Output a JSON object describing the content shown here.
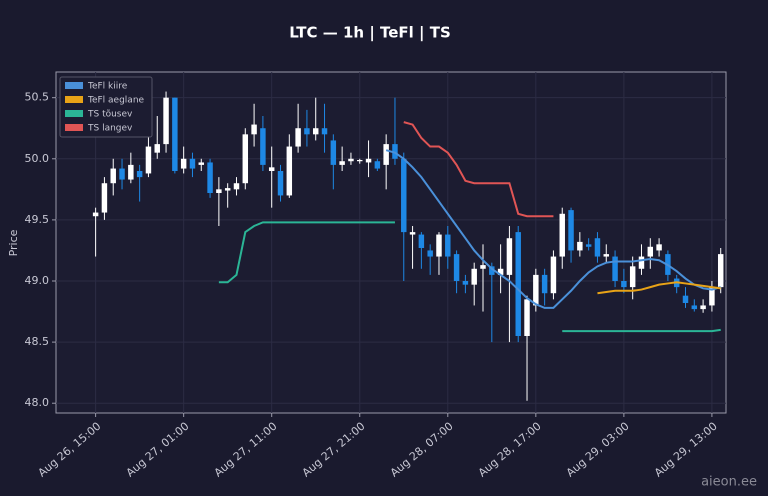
{
  "chart_data": {
    "type": "candlestick",
    "title": "LTC — 1h  |  TeFl  |  TS",
    "ylabel": "Price",
    "watermark": "aieon.ee",
    "grid": true,
    "legend": "upper left",
    "up_color": "#ffffff",
    "down_color": "#1e88e5",
    "x": [
      0,
      1,
      2,
      3,
      4,
      5,
      6,
      7,
      8,
      9,
      10,
      11,
      12,
      13,
      14,
      15,
      16,
      17,
      18,
      19,
      20,
      21,
      22,
      23,
      24,
      25,
      26,
      27,
      28,
      29,
      30,
      31,
      32,
      33,
      34,
      35,
      36,
      37,
      38,
      39,
      40,
      41,
      42,
      43,
      44,
      45,
      46,
      47,
      48,
      49,
      50,
      51,
      52,
      53,
      54,
      55,
      56,
      57,
      58,
      59,
      60,
      61,
      62,
      63,
      64,
      65,
      66,
      67,
      68,
      69,
      70,
      71
    ],
    "open": [
      49.53,
      49.56,
      49.8,
      49.92,
      49.83,
      49.9,
      49.88,
      50.05,
      50.12,
      50.5,
      49.92,
      50.0,
      49.95,
      49.97,
      49.72,
      49.74,
      49.75,
      49.8,
      50.2,
      50.25,
      49.9,
      49.9,
      49.7,
      50.1,
      50.25,
      50.2,
      50.25,
      50.15,
      49.95,
      49.98,
      49.98,
      49.97,
      49.98,
      49.95,
      50.12,
      50.0,
      49.38,
      49.38,
      49.25,
      49.2,
      49.38,
      49.22,
      49.0,
      48.97,
      49.1,
      49.12,
      49.05,
      49.05,
      49.4,
      48.55,
      48.8,
      49.05,
      48.9,
      49.2,
      49.58,
      49.25,
      49.3,
      49.35,
      49.2,
      49.2,
      49.0,
      48.95,
      49.1,
      49.2,
      49.25,
      49.22,
      49.02,
      48.88,
      48.8,
      48.77,
      48.8,
      48.95
    ],
    "high": [
      49.6,
      49.85,
      50.0,
      50.0,
      50.05,
      49.95,
      50.2,
      50.35,
      50.55,
      50.5,
      50.1,
      50.05,
      50.0,
      50.0,
      49.85,
      49.8,
      49.85,
      50.25,
      50.45,
      50.35,
      50.1,
      49.95,
      50.2,
      50.45,
      50.4,
      50.5,
      50.45,
      50.2,
      50.1,
      50.05,
      50.0,
      50.15,
      50.0,
      50.2,
      50.5,
      50.05,
      49.45,
      49.4,
      49.3,
      49.4,
      49.45,
      49.25,
      49.05,
      49.15,
      49.3,
      49.15,
      49.3,
      49.45,
      49.45,
      48.88,
      49.1,
      49.1,
      49.25,
      49.6,
      49.6,
      49.4,
      49.35,
      49.4,
      49.3,
      49.25,
      49.1,
      49.2,
      49.3,
      49.35,
      49.35,
      49.25,
      49.05,
      48.95,
      48.85,
      48.85,
      49.0,
      49.27
    ],
    "low": [
      49.2,
      49.5,
      49.7,
      49.75,
      49.8,
      49.65,
      49.85,
      50.0,
      50.05,
      49.88,
      49.88,
      49.85,
      49.9,
      49.68,
      49.45,
      49.6,
      49.7,
      49.75,
      50.1,
      49.9,
      49.6,
      49.65,
      49.68,
      50.05,
      50.1,
      50.15,
      50.05,
      49.75,
      49.9,
      49.95,
      49.96,
      49.85,
      49.9,
      49.75,
      49.95,
      49.0,
      49.1,
      49.1,
      49.05,
      49.05,
      49.1,
      48.9,
      48.9,
      48.8,
      48.75,
      48.5,
      48.9,
      48.5,
      48.5,
      48.02,
      48.75,
      48.8,
      48.85,
      49.1,
      49.15,
      49.2,
      49.25,
      49.15,
      49.15,
      48.95,
      48.9,
      48.85,
      49.05,
      49.1,
      49.2,
      49.0,
      48.9,
      48.78,
      48.75,
      48.74,
      48.75,
      48.9
    ],
    "close": [
      49.56,
      49.8,
      49.92,
      49.83,
      49.95,
      49.85,
      50.1,
      50.12,
      50.5,
      49.9,
      50.0,
      49.92,
      49.97,
      49.72,
      49.75,
      49.76,
      49.8,
      50.2,
      50.28,
      49.95,
      49.93,
      49.7,
      50.1,
      50.25,
      50.2,
      50.25,
      50.2,
      49.95,
      49.98,
      50.0,
      49.99,
      50.0,
      49.92,
      50.12,
      50.0,
      49.4,
      49.4,
      49.27,
      49.2,
      49.38,
      49.2,
      49.0,
      48.97,
      49.1,
      49.13,
      49.05,
      49.1,
      49.35,
      48.55,
      48.85,
      49.05,
      48.9,
      49.2,
      49.55,
      49.25,
      49.32,
      49.28,
      49.2,
      49.22,
      49.0,
      48.95,
      49.12,
      49.2,
      49.28,
      49.3,
      49.05,
      48.95,
      48.82,
      48.77,
      48.8,
      48.95,
      49.22
    ],
    "series": [
      {
        "name": "TeFl kiire",
        "color": "#4a90d9",
        "values": [
          null,
          null,
          null,
          null,
          null,
          null,
          null,
          null,
          null,
          null,
          null,
          null,
          null,
          null,
          null,
          null,
          null,
          null,
          null,
          null,
          null,
          null,
          null,
          null,
          null,
          null,
          null,
          null,
          null,
          null,
          null,
          null,
          null,
          50.07,
          50.05,
          50.0,
          49.93,
          49.85,
          49.75,
          49.65,
          49.55,
          49.45,
          49.35,
          49.25,
          49.17,
          49.1,
          49.05,
          49.0,
          48.93,
          48.86,
          48.81,
          48.78,
          48.78,
          48.85,
          48.92,
          49.0,
          49.07,
          49.12,
          49.15,
          49.16,
          49.16,
          49.16,
          49.17,
          49.18,
          49.17,
          49.13,
          49.08,
          49.02,
          48.97,
          48.94,
          48.93,
          48.95
        ]
      },
      {
        "name": "TeFl aeglane",
        "color": "#e8a317",
        "values": [
          null,
          null,
          null,
          null,
          null,
          null,
          null,
          null,
          null,
          null,
          null,
          null,
          null,
          null,
          null,
          null,
          null,
          null,
          null,
          null,
          null,
          null,
          null,
          null,
          null,
          null,
          null,
          null,
          null,
          null,
          null,
          null,
          null,
          null,
          null,
          null,
          null,
          null,
          null,
          null,
          null,
          null,
          null,
          null,
          null,
          null,
          null,
          null,
          null,
          null,
          null,
          null,
          null,
          null,
          null,
          null,
          null,
          48.9,
          48.91,
          48.92,
          48.92,
          48.92,
          48.93,
          48.95,
          48.97,
          48.98,
          48.99,
          48.98,
          48.97,
          48.96,
          48.95,
          48.94
        ]
      },
      {
        "name": "TS tõusev",
        "color": "#2bb596",
        "values": [
          null,
          null,
          null,
          null,
          null,
          null,
          null,
          null,
          null,
          null,
          null,
          null,
          null,
          null,
          48.99,
          48.99,
          49.05,
          49.4,
          49.45,
          49.48,
          49.48,
          49.48,
          49.48,
          49.48,
          49.48,
          49.48,
          49.48,
          49.48,
          49.48,
          49.48,
          49.48,
          49.48,
          49.48,
          49.48,
          49.48,
          null,
          null,
          null,
          null,
          null,
          null,
          null,
          null,
          null,
          null,
          null,
          null,
          null,
          null,
          null,
          null,
          null,
          null,
          48.59,
          48.59,
          48.59,
          48.59,
          48.59,
          48.59,
          48.59,
          48.59,
          48.59,
          48.59,
          48.59,
          48.59,
          48.59,
          48.59,
          48.59,
          48.59,
          48.59,
          48.59,
          48.6
        ]
      },
      {
        "name": "TS langev",
        "color": "#e05555",
        "values": [
          null,
          null,
          null,
          null,
          null,
          null,
          null,
          null,
          null,
          null,
          null,
          null,
          null,
          null,
          null,
          null,
          null,
          null,
          null,
          null,
          null,
          null,
          null,
          null,
          null,
          null,
          null,
          null,
          null,
          null,
          null,
          null,
          null,
          null,
          null,
          50.3,
          50.28,
          50.17,
          50.1,
          50.1,
          50.05,
          49.95,
          49.82,
          49.8,
          49.8,
          49.8,
          49.8,
          49.8,
          49.55,
          49.53,
          49.53,
          49.53,
          49.53,
          null,
          null,
          null,
          null,
          null,
          null,
          null,
          null,
          null,
          null,
          null,
          null,
          null,
          null,
          null,
          null,
          null,
          null,
          null
        ]
      }
    ],
    "xlim": [
      -4.5,
      71.6
    ],
    "xticks": [
      {
        "value": 0,
        "label": "Aug 26, 15:00"
      },
      {
        "value": 10,
        "label": "Aug 27, 01:00"
      },
      {
        "value": 20,
        "label": "Aug 27, 11:00"
      },
      {
        "value": 30,
        "label": "Aug 27, 21:00"
      },
      {
        "value": 40,
        "label": "Aug 28, 07:00"
      },
      {
        "value": 50,
        "label": "Aug 28, 17:00"
      },
      {
        "value": 60,
        "label": "Aug 29, 03:00"
      },
      {
        "value": 70,
        "label": "Aug 29, 13:00"
      }
    ],
    "ylim": [
      47.92,
      50.71
    ],
    "yticks": [
      {
        "value": 48,
        "label": "48.0"
      },
      48.5,
      {
        "value": 49,
        "label": "49.0"
      },
      49.5,
      {
        "value": 50,
        "label": "50.0"
      },
      50.5
    ]
  }
}
